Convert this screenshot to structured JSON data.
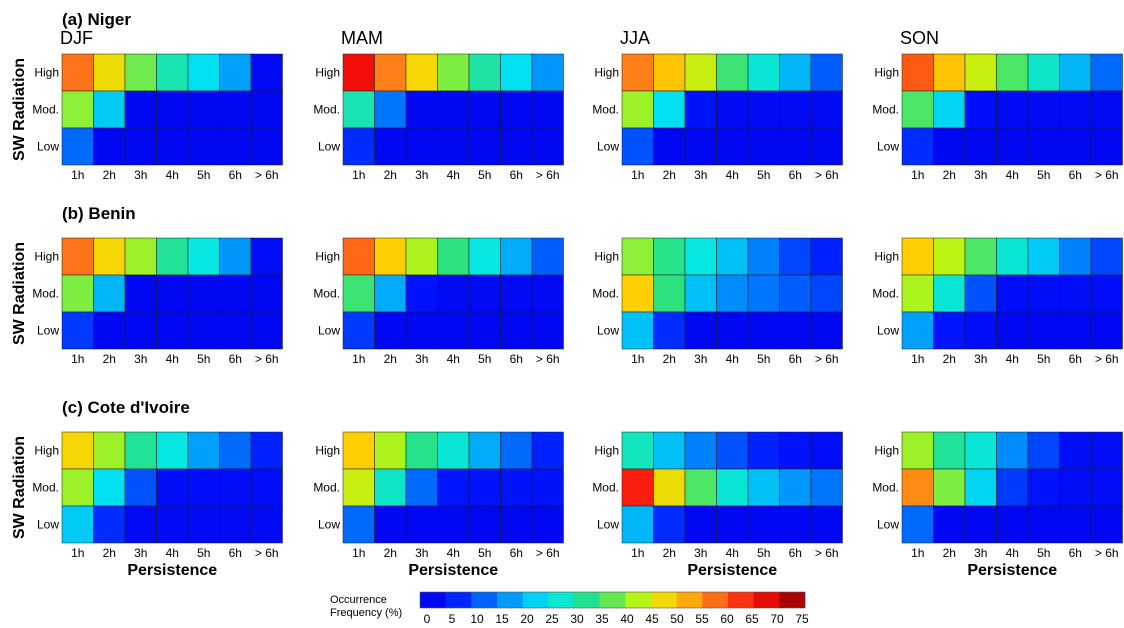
{
  "chart_data": {
    "type": "heatmap",
    "rows": [
      "High",
      "Mod.",
      "Low"
    ],
    "columns": [
      "1h",
      "2h",
      "3h",
      "4h",
      "5h",
      "6h",
      "> 6h"
    ],
    "ylabel": "SW Radiation",
    "xlabel": "Persistence",
    "colorbar": {
      "title_line1": "Occurrence",
      "title_line2": "Frequency (%)",
      "min": 0,
      "max": 75,
      "ticks": [
        "0",
        "5",
        "10",
        "15",
        "20",
        "25",
        "30",
        "35",
        "40",
        "45",
        "50",
        "55",
        "60",
        "65",
        "70",
        "75"
      ]
    },
    "sections": [
      {
        "title": "(a) Niger",
        "panels": [
          {
            "season": "DJF",
            "values": [
              [
                57,
                47,
                38,
                30,
                24,
                18,
                3
              ],
              [
                40,
                22,
                2,
                2,
                2,
                2,
                2
              ],
              [
                13,
                2,
                2,
                2,
                2,
                2,
                2
              ]
            ]
          },
          {
            "season": "MAM",
            "values": [
              [
                66,
                56,
                48,
                39,
                31,
                24,
                17
              ],
              [
                30,
                14,
                2,
                2,
                2,
                2,
                2
              ],
              [
                8,
                2,
                2,
                2,
                2,
                2,
                2
              ]
            ]
          },
          {
            "season": "JJA",
            "values": [
              [
                56,
                50,
                44,
                35,
                27,
                20,
                12
              ],
              [
                41,
                24,
                5,
                3,
                3,
                3,
                3
              ],
              [
                11,
                2,
                2,
                2,
                2,
                2,
                2
              ]
            ]
          },
          {
            "season": "SON",
            "values": [
              [
                59,
                50,
                44,
                36,
                28,
                20,
                13
              ],
              [
                36,
                23,
                4,
                3,
                3,
                3,
                3
              ],
              [
                8,
                2,
                2,
                2,
                2,
                2,
                2
              ]
            ]
          }
        ]
      },
      {
        "title": "(b) Benin",
        "panels": [
          {
            "season": "DJF",
            "values": [
              [
                57,
                48,
                41,
                32,
                26,
                17,
                4
              ],
              [
                39,
                20,
                2,
                2,
                2,
                2,
                2
              ],
              [
                9,
                2,
                2,
                2,
                2,
                2,
                2
              ]
            ]
          },
          {
            "season": "MAM",
            "values": [
              [
                58,
                49,
                42,
                34,
                26,
                19,
                12
              ],
              [
                35,
                19,
                5,
                3,
                3,
                3,
                3
              ],
              [
                9,
                2,
                2,
                2,
                2,
                2,
                2
              ]
            ]
          },
          {
            "season": "JJA",
            "values": [
              [
                40,
                33,
                26,
                21,
                15,
                10,
                7
              ],
              [
                49,
                34,
                21,
                16,
                14,
                12,
                10
              ],
              [
                21,
                8,
                2,
                2,
                2,
                2,
                2
              ]
            ]
          },
          {
            "season": "SON",
            "values": [
              [
                49,
                43,
                36,
                27,
                22,
                15,
                10
              ],
              [
                42,
                27,
                11,
                4,
                4,
                4,
                4
              ],
              [
                18,
                6,
                4,
                2,
                2,
                2,
                2
              ]
            ]
          }
        ]
      },
      {
        "title": "(c) Cote d'Ivoire",
        "panels": [
          {
            "season": "DJF",
            "values": [
              [
                48,
                41,
                32,
                26,
                18,
                13,
                7
              ],
              [
                41,
                24,
                11,
                4,
                4,
                4,
                4
              ],
              [
                22,
                8,
                3,
                3,
                3,
                3,
                3
              ]
            ]
          },
          {
            "season": "MAM",
            "values": [
              [
                49,
                42,
                33,
                27,
                19,
                13,
                7
              ],
              [
                44,
                28,
                13,
                6,
                5,
                5,
                5
              ],
              [
                13,
                2,
                2,
                2,
                2,
                2,
                2
              ]
            ]
          },
          {
            "season": "JJA",
            "values": [
              [
                29,
                21,
                15,
                11,
                7,
                5,
                4
              ],
              [
                64,
                47,
                36,
                27,
                21,
                17,
                14
              ],
              [
                20,
                8,
                2,
                2,
                2,
                2,
                2
              ]
            ]
          },
          {
            "season": "SON",
            "values": [
              [
                41,
                32,
                27,
                16,
                10,
                4,
                4
              ],
              [
                55,
                39,
                23,
                9,
                5,
                4,
                4
              ],
              [
                13,
                2,
                2,
                2,
                2,
                2,
                2
              ]
            ]
          }
        ]
      }
    ]
  }
}
